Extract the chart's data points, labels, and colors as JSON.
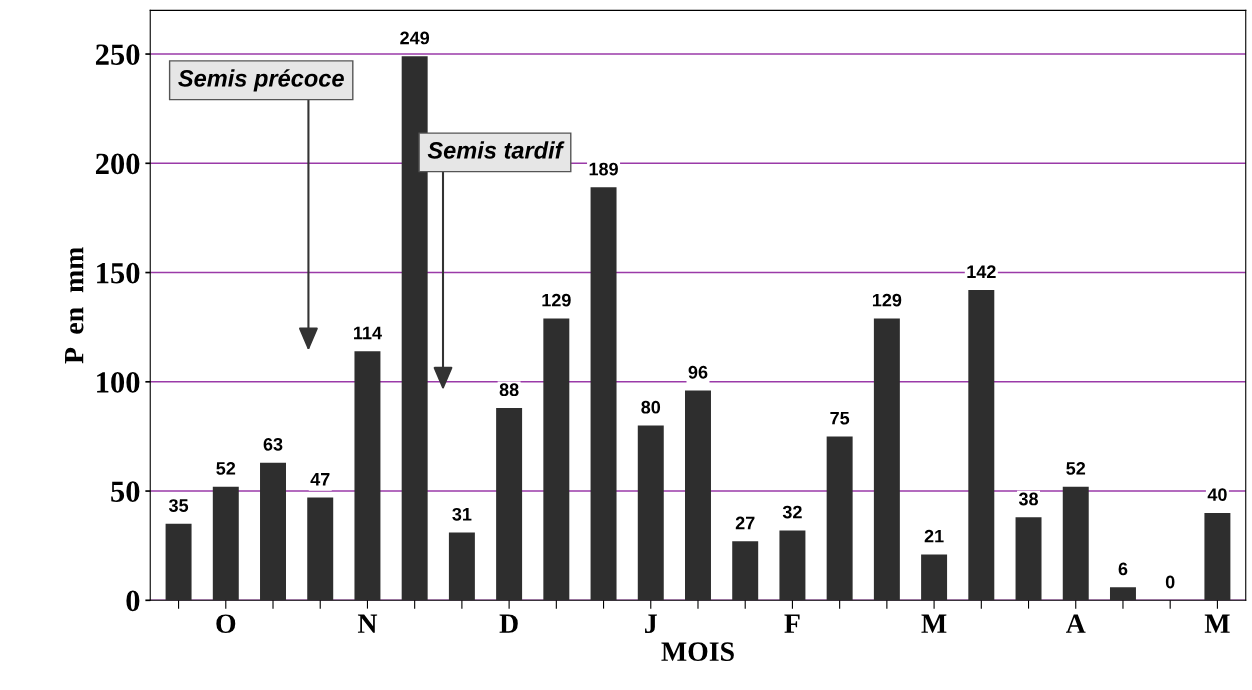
{
  "chart_data": {
    "type": "bar",
    "xlabel": "MOIS",
    "ylabel": "P  en  mm",
    "categories": [
      null,
      "O",
      null,
      null,
      "N",
      null,
      null,
      "D",
      null,
      null,
      "J",
      null,
      null,
      "F",
      null,
      null,
      "M",
      null,
      null,
      "A",
      null,
      null,
      "M"
    ],
    "values": [
      35,
      52,
      63,
      47,
      114,
      249,
      31,
      88,
      129,
      189,
      80,
      96,
      27,
      32,
      75,
      129,
      21,
      142,
      38,
      52,
      6,
      0,
      40
    ],
    "color": "#2e2e2e",
    "ylim": [
      0,
      270
    ],
    "yticks": [
      0,
      50,
      100,
      150,
      200,
      250
    ],
    "grid": "y",
    "data_labels": true,
    "annotations": [
      "Semis précoce",
      "Semis tardif"
    ]
  }
}
